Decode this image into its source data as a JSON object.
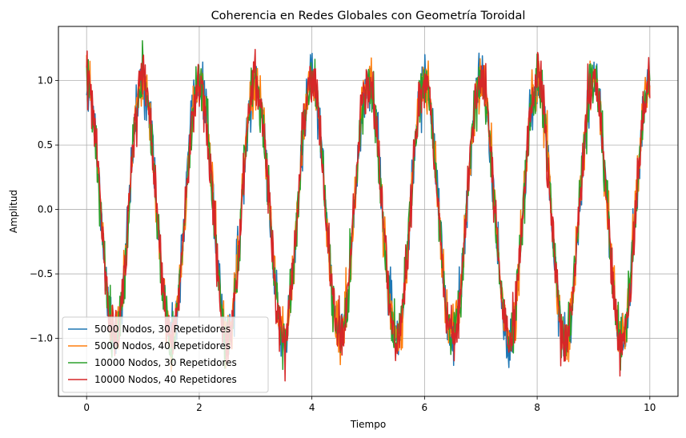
{
  "chart_data": {
    "type": "line",
    "title": "Coherencia en Redes Globales con Geometría Toroidal",
    "xlabel": "Tiempo",
    "ylabel": "Amplitud",
    "xlim": [
      -0.5,
      10.5
    ],
    "ylim": [
      -1.45,
      1.42
    ],
    "xticks": [
      0,
      2,
      4,
      6,
      8,
      10
    ],
    "xtick_labels": [
      "0",
      "2",
      "4",
      "6",
      "8",
      "10"
    ],
    "yticks": [
      -1.0,
      -0.5,
      0.0,
      0.5,
      1.0
    ],
    "ytick_labels": [
      "−1.0",
      "−0.5",
      "0.0",
      "0.5",
      "1.0"
    ],
    "grid": true,
    "legend_position": "lower-left",
    "signal": {
      "function": "cos",
      "frequency": 1,
      "t_start": 0,
      "t_end": 10,
      "points": 1000,
      "noise_sd": 0.1
    },
    "series": [
      {
        "name": "5000 Nodos, 30 Repetidores",
        "color": "#1f77b4",
        "seed": 11
      },
      {
        "name": "5000 Nodos, 40 Repetidores",
        "color": "#ff7f0e",
        "seed": 23
      },
      {
        "name": "10000 Nodos, 30 Repetidores",
        "color": "#2ca02c",
        "seed": 37
      },
      {
        "name": "10000 Nodos, 40 Repetidores",
        "color": "#d62728",
        "seed": 53
      }
    ]
  }
}
